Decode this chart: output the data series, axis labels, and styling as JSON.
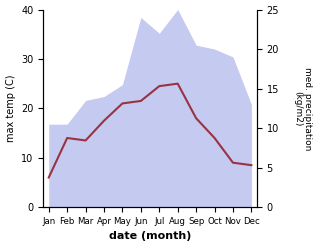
{
  "months": [
    "Jan",
    "Feb",
    "Mar",
    "Apr",
    "May",
    "Jun",
    "Jul",
    "Aug",
    "Sep",
    "Oct",
    "Nov",
    "Dec"
  ],
  "x": [
    0,
    1,
    2,
    3,
    4,
    5,
    6,
    7,
    8,
    9,
    10,
    11
  ],
  "temp": [
    6.0,
    14.0,
    13.5,
    17.5,
    21.0,
    21.5,
    24.5,
    25.0,
    18.0,
    14.0,
    9.0,
    8.5
  ],
  "precip": [
    10.5,
    10.5,
    13.5,
    14.0,
    15.5,
    24.0,
    22.0,
    25.0,
    20.5,
    20.0,
    19.0,
    13.0
  ],
  "temp_color": "#993344",
  "precip_color_fill": "#c5caf0",
  "ylabel_left": "max temp (C)",
  "ylabel_right": "med. precipitation\n(kg/m2)",
  "xlabel": "date (month)",
  "ylim_left": [
    0,
    40
  ],
  "ylim_right": [
    0,
    25
  ],
  "precip_scale": 1.6,
  "yticks_left": [
    0,
    10,
    20,
    30,
    40
  ],
  "yticks_right": [
    0,
    5,
    10,
    15,
    20,
    25
  ],
  "background_color": "#ffffff"
}
